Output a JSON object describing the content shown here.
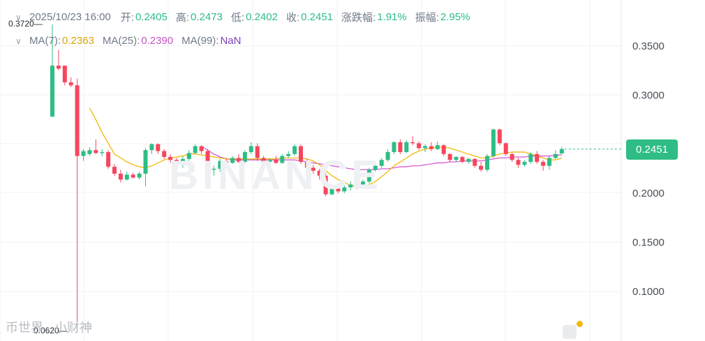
{
  "legend": {
    "ohlc": {
      "time": "2025/10/23 16:00",
      "open_label": "开:",
      "open": "0.2405",
      "high_label": "高:",
      "high": "0.2473",
      "low_label": "低:",
      "low": "0.2402",
      "close_label": "收:",
      "close": "0.2451",
      "change_label": "涨跌幅:",
      "change": "1.91%",
      "amplitude_label": "振幅:",
      "amplitude": "2.95%"
    },
    "ma": {
      "ma7_label": "MA(7):",
      "ma7": "0.2363",
      "ma25_label": "MA(25):",
      "ma25": "0.2390",
      "ma99_label": "MA(99):",
      "ma99": "NaN"
    }
  },
  "current_price": "0.2451",
  "max_label": "0.3720",
  "min_label": "0.0620",
  "watermark": "BINANCE",
  "source_mark": "币世界 · 小财神",
  "colors": {
    "up": "#2ebd85",
    "down": "#f6465d",
    "ma7": "#f0b90b",
    "ma25": "#d65ad6",
    "grid": "#f0f1f3"
  },
  "chart_data": {
    "type": "candlestick",
    "title": "",
    "xlabel": "",
    "ylabel": "",
    "ylim": [
      0.05,
      0.39
    ],
    "y_ticks": [
      "0.3500",
      "0.3000",
      "0.2500",
      "0.2000",
      "0.1500",
      "0.1000"
    ],
    "y_tick_values": [
      0.35,
      0.3,
      0.25,
      0.2,
      0.15,
      0.1
    ],
    "grid": true,
    "candles": [
      [
        0.278,
        0.372,
        0.278,
        0.33
      ],
      [
        0.33,
        0.346,
        0.325,
        0.327
      ],
      [
        0.33,
        0.33,
        0.31,
        0.313
      ],
      [
        0.313,
        0.318,
        0.308,
        0.31
      ],
      [
        0.31,
        0.317,
        0.062,
        0.238
      ],
      [
        0.238,
        0.245,
        0.233,
        0.243
      ],
      [
        0.24,
        0.247,
        0.238,
        0.244
      ],
      [
        0.244,
        0.255,
        0.24,
        0.241
      ],
      [
        0.241,
        0.245,
        0.238,
        0.242
      ],
      [
        0.242,
        0.244,
        0.225,
        0.227
      ],
      [
        0.227,
        0.23,
        0.218,
        0.22
      ],
      [
        0.22,
        0.224,
        0.211,
        0.214
      ],
      [
        0.214,
        0.222,
        0.213,
        0.219
      ],
      [
        0.219,
        0.221,
        0.215,
        0.216
      ],
      [
        0.216,
        0.222,
        0.214,
        0.22
      ],
      [
        0.22,
        0.246,
        0.207,
        0.244
      ],
      [
        0.244,
        0.251,
        0.24,
        0.25
      ],
      [
        0.25,
        0.251,
        0.24,
        0.243
      ],
      [
        0.243,
        0.245,
        0.235,
        0.237
      ],
      [
        0.237,
        0.24,
        0.231,
        0.234
      ],
      [
        0.234,
        0.236,
        0.225,
        0.229
      ],
      [
        0.229,
        0.238,
        0.226,
        0.235
      ],
      [
        0.235,
        0.244,
        0.233,
        0.241
      ],
      [
        0.241,
        0.25,
        0.24,
        0.248
      ],
      [
        0.248,
        0.249,
        0.24,
        0.243
      ],
      [
        0.243,
        0.245,
        0.222,
        0.224
      ],
      [
        0.224,
        0.228,
        0.218,
        0.225
      ],
      [
        0.225,
        0.235,
        0.222,
        0.233
      ],
      [
        0.233,
        0.236,
        0.229,
        0.231
      ],
      [
        0.231,
        0.238,
        0.23,
        0.236
      ],
      [
        0.236,
        0.24,
        0.231,
        0.232
      ],
      [
        0.232,
        0.244,
        0.231,
        0.242
      ],
      [
        0.242,
        0.252,
        0.24,
        0.248
      ],
      [
        0.248,
        0.251,
        0.233,
        0.236
      ],
      [
        0.236,
        0.238,
        0.231,
        0.232
      ],
      [
        0.232,
        0.236,
        0.229,
        0.234
      ],
      [
        0.234,
        0.238,
        0.23,
        0.231
      ],
      [
        0.231,
        0.24,
        0.23,
        0.238
      ],
      [
        0.238,
        0.243,
        0.236,
        0.24
      ],
      [
        0.24,
        0.25,
        0.238,
        0.248
      ],
      [
        0.248,
        0.25,
        0.23,
        0.232
      ],
      [
        0.232,
        0.235,
        0.224,
        0.226
      ],
      [
        0.226,
        0.229,
        0.22,
        0.223
      ],
      [
        0.223,
        0.225,
        0.214,
        0.218
      ],
      [
        0.218,
        0.221,
        0.197,
        0.199
      ],
      [
        0.199,
        0.206,
        0.198,
        0.205
      ],
      [
        0.205,
        0.208,
        0.2,
        0.202
      ],
      [
        0.202,
        0.208,
        0.2,
        0.206
      ],
      [
        0.206,
        0.212,
        0.203,
        0.209
      ],
      [
        0.209,
        0.212,
        0.204,
        0.206
      ],
      [
        0.206,
        0.214,
        0.205,
        0.212
      ],
      [
        0.212,
        0.226,
        0.21,
        0.224
      ],
      [
        0.224,
        0.23,
        0.222,
        0.228
      ],
      [
        0.228,
        0.236,
        0.226,
        0.234
      ],
      [
        0.234,
        0.245,
        0.232,
        0.242
      ],
      [
        0.242,
        0.253,
        0.24,
        0.252
      ],
      [
        0.252,
        0.255,
        0.24,
        0.242
      ],
      [
        0.242,
        0.254,
        0.241,
        0.252
      ],
      [
        0.252,
        0.258,
        0.249,
        0.251
      ],
      [
        0.251,
        0.253,
        0.244,
        0.246
      ],
      [
        0.246,
        0.25,
        0.242,
        0.248
      ],
      [
        0.248,
        0.252,
        0.243,
        0.245
      ],
      [
        0.245,
        0.253,
        0.244,
        0.249
      ],
      [
        0.249,
        0.25,
        0.238,
        0.24
      ],
      [
        0.24,
        0.241,
        0.232,
        0.234
      ],
      [
        0.234,
        0.238,
        0.232,
        0.237
      ],
      [
        0.237,
        0.238,
        0.231,
        0.232
      ],
      [
        0.232,
        0.236,
        0.23,
        0.235
      ],
      [
        0.235,
        0.236,
        0.226,
        0.228
      ],
      [
        0.228,
        0.232,
        0.222,
        0.224
      ],
      [
        0.224,
        0.24,
        0.222,
        0.238
      ],
      [
        0.238,
        0.266,
        0.236,
        0.265
      ],
      [
        0.265,
        0.266,
        0.249,
        0.251
      ],
      [
        0.251,
        0.252,
        0.238,
        0.24
      ],
      [
        0.24,
        0.241,
        0.232,
        0.234
      ],
      [
        0.234,
        0.236,
        0.226,
        0.229
      ],
      [
        0.229,
        0.234,
        0.227,
        0.232
      ],
      [
        0.232,
        0.242,
        0.23,
        0.24
      ],
      [
        0.24,
        0.243,
        0.23,
        0.232
      ],
      [
        0.232,
        0.234,
        0.223,
        0.228
      ],
      [
        0.228,
        0.238,
        0.224,
        0.236
      ],
      [
        0.236,
        0.244,
        0.235,
        0.24
      ],
      [
        0.2405,
        0.2473,
        0.2402,
        0.2451
      ]
    ],
    "ma7": [
      null,
      null,
      null,
      null,
      null,
      null,
      0.287,
      0.275,
      0.262,
      0.251,
      0.24,
      0.236,
      0.232,
      0.229,
      0.227,
      0.226,
      0.228,
      0.231,
      0.234,
      0.236,
      0.237,
      0.238,
      0.24,
      0.24,
      0.239,
      0.238,
      0.237,
      0.236,
      0.235,
      0.235,
      0.235,
      0.235,
      0.235,
      0.235,
      0.235,
      0.235,
      0.235,
      0.236,
      0.236,
      0.236,
      0.236,
      0.235,
      0.233,
      0.229,
      0.223,
      0.218,
      0.214,
      0.211,
      0.208,
      0.207,
      0.207,
      0.209,
      0.212,
      0.217,
      0.222,
      0.228,
      0.232,
      0.236,
      0.24,
      0.243,
      0.245,
      0.246,
      0.247,
      0.247,
      0.246,
      0.244,
      0.242,
      0.24,
      0.238,
      0.236,
      0.236,
      0.238,
      0.24,
      0.241,
      0.242,
      0.242,
      0.242,
      0.24,
      0.238,
      0.236,
      0.234,
      0.234,
      0.236
    ],
    "ma25": [
      null,
      null,
      null,
      null,
      null,
      null,
      null,
      null,
      null,
      null,
      null,
      null,
      null,
      null,
      null,
      null,
      null,
      null,
      null,
      null,
      null,
      null,
      null,
      null,
      0.248,
      0.244,
      0.24,
      0.237,
      0.235,
      0.234,
      0.234,
      0.234,
      0.234,
      0.234,
      0.234,
      0.234,
      0.234,
      0.234,
      0.234,
      0.234,
      0.233,
      0.232,
      0.231,
      0.23,
      0.229,
      0.228,
      0.227,
      0.226,
      0.225,
      0.224,
      0.224,
      0.224,
      0.224,
      0.225,
      0.225,
      0.226,
      0.227,
      0.227,
      0.228,
      0.228,
      0.229,
      0.23,
      0.231,
      0.231,
      0.232,
      0.232,
      0.233,
      0.233,
      0.233,
      0.233,
      0.234,
      0.235,
      0.236,
      0.236,
      0.237,
      0.237,
      0.237,
      0.238,
      0.238,
      0.238,
      0.238,
      0.239,
      0.239
    ]
  }
}
